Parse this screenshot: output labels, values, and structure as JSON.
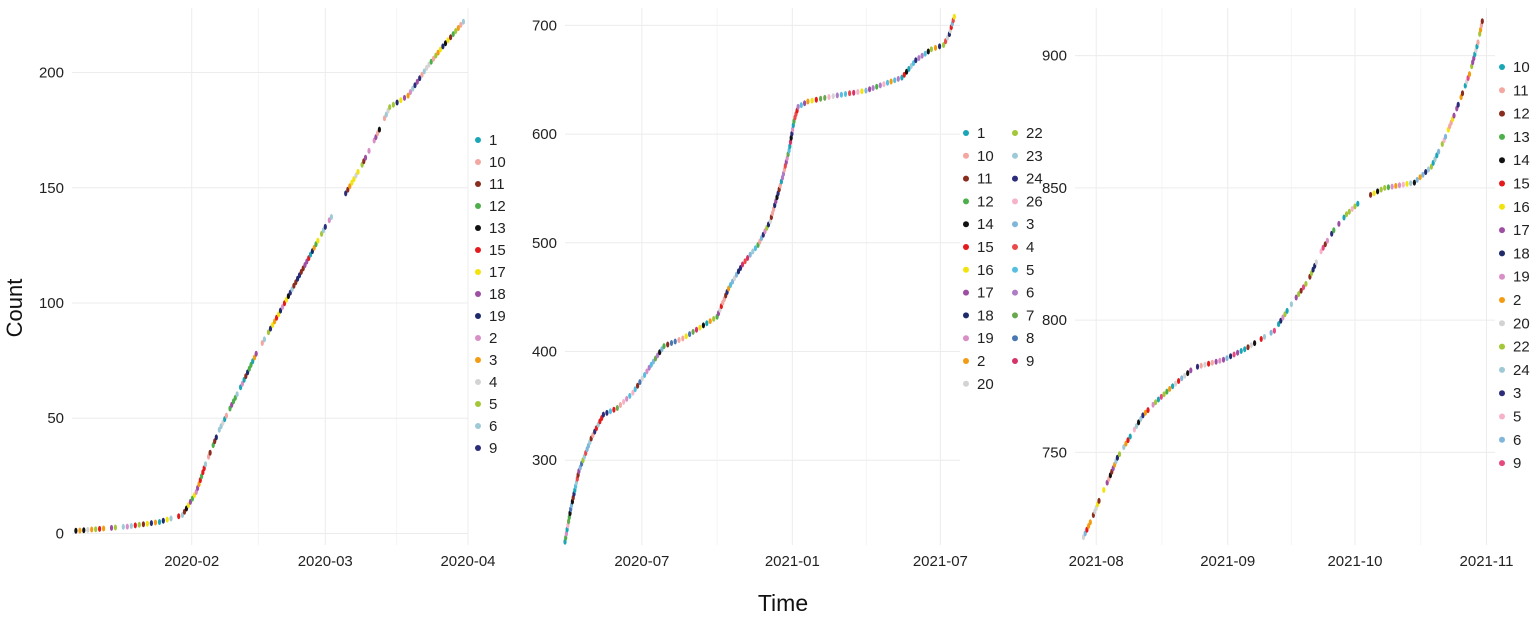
{
  "figure": {
    "ylabel": "Count",
    "xlabel": "Time"
  },
  "chart_data": [
    {
      "type": "scatter",
      "title": "",
      "xlabel": "",
      "ylabel": "Count",
      "xlim": [
        "2020-01-06",
        "2020-04-01"
      ],
      "ylim": [
        -5,
        228
      ],
      "x_ticks": [
        "2020-02-01",
        "2020-03-01",
        "2020-04-01"
      ],
      "x_tick_labels": [
        "2020-02",
        "2020-03",
        "2020-04"
      ],
      "y_ticks": [
        0,
        50,
        100,
        150,
        200
      ],
      "grid": true,
      "legend_position": "right",
      "legend": [
        {
          "name": "1",
          "color": "#1aa6b7"
        },
        {
          "name": "10",
          "color": "#f4a6a0"
        },
        {
          "name": "11",
          "color": "#8b2d1e"
        },
        {
          "name": "12",
          "color": "#4daf4a"
        },
        {
          "name": "13",
          "color": "#111111"
        },
        {
          "name": "15",
          "color": "#e41a1c"
        },
        {
          "name": "17",
          "color": "#f2e30c"
        },
        {
          "name": "18",
          "color": "#9e4fa3"
        },
        {
          "name": "19",
          "color": "#1f2a6b"
        },
        {
          "name": "2",
          "color": "#d98ec6"
        },
        {
          "name": "3",
          "color": "#f39c12"
        },
        {
          "name": "4",
          "color": "#d3d3d3"
        },
        {
          "name": "5",
          "color": "#a4c639"
        },
        {
          "name": "6",
          "color": "#9ec9d6"
        },
        {
          "name": "9",
          "color": "#2b2d7a"
        }
      ],
      "curve": [
        [
          "2020-01-06",
          1
        ],
        [
          "2020-01-18",
          3
        ],
        [
          "2020-01-25",
          5
        ],
        [
          "2020-01-30",
          8
        ],
        [
          "2020-02-02",
          18
        ],
        [
          "2020-02-04",
          30
        ],
        [
          "2020-02-07",
          45
        ],
        [
          "2020-02-12",
          65
        ],
        [
          "2020-02-15",
          78
        ],
        [
          "2020-02-19",
          92
        ],
        [
          "2020-02-22",
          103
        ],
        [
          "2020-02-26",
          118
        ],
        [
          "2020-03-01",
          133
        ],
        [
          "2020-03-05",
          146
        ],
        [
          "2020-03-09",
          160
        ],
        [
          "2020-03-12",
          172
        ],
        [
          "2020-03-15",
          185
        ],
        [
          "2020-03-19",
          190
        ],
        [
          "2020-03-23",
          202
        ],
        [
          "2020-03-26",
          210
        ],
        [
          "2020-03-31",
          222
        ]
      ]
    },
    {
      "type": "scatter",
      "title": "",
      "xlabel": "Time",
      "ylabel": "",
      "xlim": [
        "2020-03-29",
        "2021-07-25"
      ],
      "ylim": [
        222,
        716
      ],
      "x_ticks": [
        "2020-07-01",
        "2021-01-01",
        "2021-07-01"
      ],
      "x_tick_labels": [
        "2020-07",
        "2021-01",
        "2021-07"
      ],
      "y_ticks": [
        300,
        400,
        500,
        600,
        700
      ],
      "grid": true,
      "legend_position": "right",
      "legend": [
        {
          "name": "1",
          "color": "#1aa6b7"
        },
        {
          "name": "10",
          "color": "#f4a6a0"
        },
        {
          "name": "11",
          "color": "#8b2d1e"
        },
        {
          "name": "12",
          "color": "#4daf4a"
        },
        {
          "name": "14",
          "color": "#111111"
        },
        {
          "name": "15",
          "color": "#e41a1c"
        },
        {
          "name": "16",
          "color": "#f2e30c"
        },
        {
          "name": "17",
          "color": "#9e4fa3"
        },
        {
          "name": "18",
          "color": "#1f2a6b"
        },
        {
          "name": "19",
          "color": "#d98ec6"
        },
        {
          "name": "2",
          "color": "#f39c12"
        },
        {
          "name": "20",
          "color": "#d3d3d3"
        },
        {
          "name": "22",
          "color": "#a4c639"
        },
        {
          "name": "23",
          "color": "#9ec9d6"
        },
        {
          "name": "24",
          "color": "#2b2d7a"
        },
        {
          "name": "26",
          "color": "#f6b3c7"
        },
        {
          "name": "3",
          "color": "#7fb6d9"
        },
        {
          "name": "4",
          "color": "#ea4a4a"
        },
        {
          "name": "5",
          "color": "#56bfe0"
        },
        {
          "name": "6",
          "color": "#b07cc6"
        },
        {
          "name": "7",
          "color": "#6aa84f"
        },
        {
          "name": "8",
          "color": "#4a77b4"
        },
        {
          "name": "9",
          "color": "#d6336c"
        }
      ],
      "curve": [
        [
          "2020-03-29",
          225
        ],
        [
          "2020-04-05",
          255
        ],
        [
          "2020-04-15",
          290
        ],
        [
          "2020-04-30",
          320
        ],
        [
          "2020-05-15",
          342
        ],
        [
          "2020-06-01",
          348
        ],
        [
          "2020-06-20",
          362
        ],
        [
          "2020-07-10",
          385
        ],
        [
          "2020-07-28",
          405
        ],
        [
          "2020-08-20",
          412
        ],
        [
          "2020-09-10",
          422
        ],
        [
          "2020-10-01",
          432
        ],
        [
          "2020-10-15",
          458
        ],
        [
          "2020-11-01",
          480
        ],
        [
          "2020-11-20",
          498
        ],
        [
          "2020-12-05",
          520
        ],
        [
          "2020-12-20",
          560
        ],
        [
          "2020-12-28",
          585
        ],
        [
          "2021-01-03",
          612
        ],
        [
          "2021-01-08",
          625
        ],
        [
          "2021-01-20",
          630
        ],
        [
          "2021-02-20",
          635
        ],
        [
          "2021-04-01",
          640
        ],
        [
          "2021-05-15",
          652
        ],
        [
          "2021-06-01",
          668
        ],
        [
          "2021-06-20",
          678
        ],
        [
          "2021-07-05",
          682
        ],
        [
          "2021-07-12",
          692
        ],
        [
          "2021-07-18",
          708
        ]
      ]
    },
    {
      "type": "scatter",
      "title": "",
      "xlabel": "",
      "ylabel": "",
      "xlim": [
        "2021-07-27",
        "2021-11-03"
      ],
      "ylim": [
        715,
        918
      ],
      "x_ticks": [
        "2021-08-01",
        "2021-09-01",
        "2021-10-01",
        "2021-11-01"
      ],
      "x_tick_labels": [
        "2021-08",
        "2021-09",
        "2021-10",
        "2021-11"
      ],
      "y_ticks": [
        750,
        800,
        850,
        900
      ],
      "grid": true,
      "legend_position": "right",
      "legend": [
        {
          "name": "10",
          "color": "#1aa6b7"
        },
        {
          "name": "11",
          "color": "#f4a6a0"
        },
        {
          "name": "12",
          "color": "#8b2d1e"
        },
        {
          "name": "13",
          "color": "#4daf4a"
        },
        {
          "name": "14",
          "color": "#111111"
        },
        {
          "name": "15",
          "color": "#e41a1c"
        },
        {
          "name": "16",
          "color": "#f2e30c"
        },
        {
          "name": "17",
          "color": "#9e4fa3"
        },
        {
          "name": "18",
          "color": "#1f2a6b"
        },
        {
          "name": "19",
          "color": "#d98ec6"
        },
        {
          "name": "2",
          "color": "#f39c12"
        },
        {
          "name": "20",
          "color": "#d3d3d3"
        },
        {
          "name": "22",
          "color": "#a4c639"
        },
        {
          "name": "24",
          "color": "#9ec9d6"
        },
        {
          "name": "3",
          "color": "#2b2d7a"
        },
        {
          "name": "5",
          "color": "#f6b3c7"
        },
        {
          "name": "6",
          "color": "#7fb6d9"
        },
        {
          "name": "9",
          "color": "#e64980"
        }
      ],
      "curve": [
        [
          "2021-07-29",
          718
        ],
        [
          "2021-07-31",
          725
        ],
        [
          "2021-08-02",
          733
        ],
        [
          "2021-08-04",
          740
        ],
        [
          "2021-08-06",
          748
        ],
        [
          "2021-08-09",
          756
        ],
        [
          "2021-08-12",
          764
        ],
        [
          "2021-08-15",
          769
        ],
        [
          "2021-08-19",
          775
        ],
        [
          "2021-08-24",
          782
        ],
        [
          "2021-08-31",
          785
        ],
        [
          "2021-09-05",
          789
        ],
        [
          "2021-09-12",
          796
        ],
        [
          "2021-09-16",
          806
        ],
        [
          "2021-09-20",
          815
        ],
        [
          "2021-09-23",
          826
        ],
        [
          "2021-09-26",
          834
        ],
        [
          "2021-09-29",
          840
        ],
        [
          "2021-10-03",
          846
        ],
        [
          "2021-10-08",
          850
        ],
        [
          "2021-10-15",
          852
        ],
        [
          "2021-10-19",
          858
        ],
        [
          "2021-10-22",
          868
        ],
        [
          "2021-10-25",
          880
        ],
        [
          "2021-10-28",
          893
        ],
        [
          "2021-10-30",
          905
        ],
        [
          "2021-10-31",
          913
        ]
      ]
    }
  ]
}
